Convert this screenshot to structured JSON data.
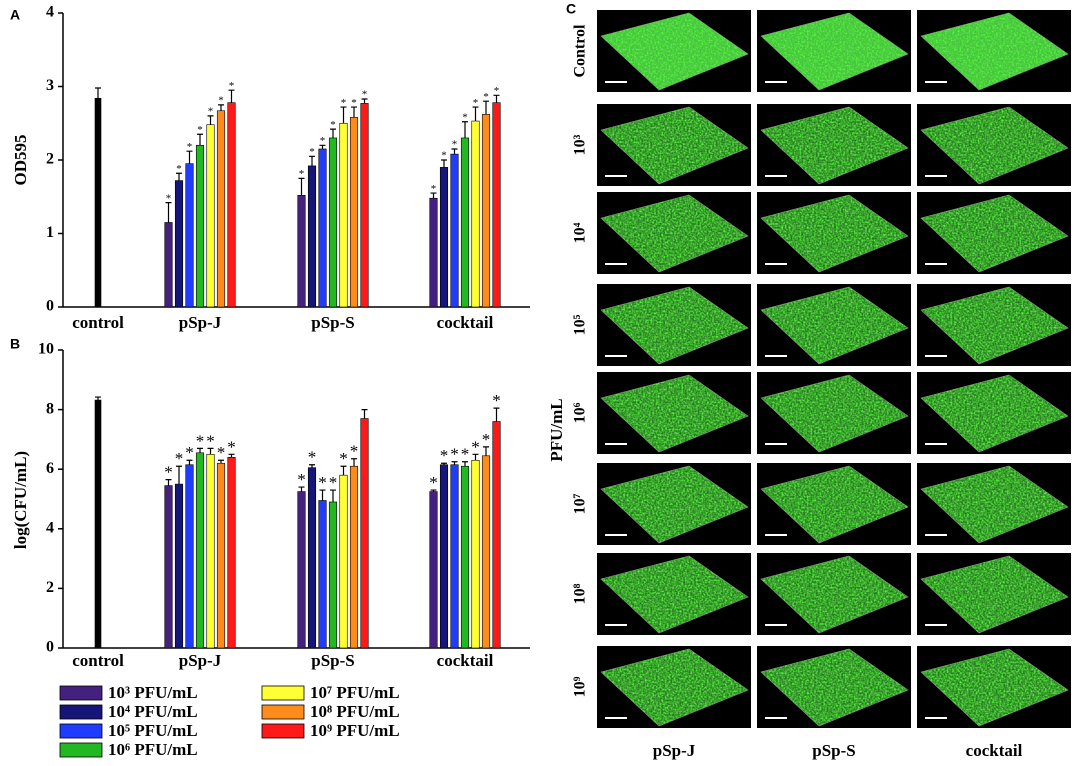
{
  "chart_data": [
    {
      "panel": "A",
      "type": "bar",
      "ylabel": "OD595",
      "categories": [
        "control",
        "pSp-J",
        "pSp-S",
        "cocktail"
      ],
      "ylim": [
        0,
        4
      ],
      "yticks": [
        0,
        1,
        2,
        3,
        4
      ],
      "control": {
        "value": 2.84,
        "error": 0.14,
        "color": "#000000"
      },
      "series": [
        {
          "color": "#45217f",
          "values": [
            null,
            1.15,
            1.52,
            1.48
          ],
          "errors": [
            null,
            0.27,
            0.23,
            0.07
          ],
          "sig": [
            null,
            "*",
            "*",
            "*"
          ]
        },
        {
          "color": "#16167a",
          "values": [
            null,
            1.72,
            1.92,
            1.9
          ],
          "errors": [
            null,
            0.1,
            0.13,
            0.1
          ],
          "sig": [
            null,
            "*",
            "*",
            "*"
          ]
        },
        {
          "color": "#1f3cff",
          "values": [
            null,
            1.95,
            2.15,
            2.08
          ],
          "errors": [
            null,
            0.17,
            0.05,
            0.07
          ],
          "sig": [
            null,
            "*",
            "*",
            "*"
          ]
        },
        {
          "color": "#22b822",
          "values": [
            null,
            2.2,
            2.3,
            2.3
          ],
          "errors": [
            null,
            0.15,
            0.12,
            0.22
          ],
          "sig": [
            null,
            "*",
            "*",
            "*"
          ]
        },
        {
          "color": "#ffff33",
          "values": [
            null,
            2.48,
            2.5,
            2.53
          ],
          "errors": [
            null,
            0.12,
            0.22,
            0.19
          ],
          "sig": [
            null,
            "*",
            "*",
            "*"
          ]
        },
        {
          "color": "#ff8c1a",
          "values": [
            null,
            2.67,
            2.58,
            2.62
          ],
          "errors": [
            null,
            0.08,
            0.14,
            0.18
          ],
          "sig": [
            null,
            "*",
            "*",
            "*"
          ]
        },
        {
          "color": "#ff1a1a",
          "values": [
            null,
            2.78,
            2.77,
            2.78
          ],
          "errors": [
            null,
            0.17,
            0.06,
            0.1
          ],
          "sig": [
            null,
            "*",
            "*",
            "*"
          ]
        }
      ]
    },
    {
      "panel": "B",
      "type": "bar",
      "ylabel": "log(CFU/mL)",
      "categories": [
        "control",
        "pSp-J",
        "pSp-S",
        "cocktail"
      ],
      "ylim": [
        0,
        10
      ],
      "yticks": [
        0,
        2,
        4,
        6,
        8,
        10
      ],
      "control": {
        "value": 8.32,
        "error": 0.1,
        "color": "#000000"
      },
      "series": [
        {
          "name": "10³ PFU/mL",
          "color": "#45217f",
          "values": [
            null,
            5.45,
            5.25,
            5.25
          ],
          "errors": [
            null,
            0.2,
            0.15,
            0.05
          ],
          "sig": [
            null,
            "*",
            "*",
            "*"
          ]
        },
        {
          "name": "10⁴ PFU/mL",
          "color": "#16167a",
          "values": [
            null,
            5.5,
            6.05,
            6.15
          ],
          "errors": [
            null,
            0.6,
            0.1,
            0.05
          ],
          "sig": [
            null,
            "*",
            "*",
            "*"
          ]
        },
        {
          "name": "10⁵ PFU/mL",
          "color": "#1f3cff",
          "values": [
            null,
            6.15,
            4.95,
            6.15
          ],
          "errors": [
            null,
            0.15,
            0.35,
            0.1
          ],
          "sig": [
            null,
            "*",
            "*",
            "*"
          ]
        },
        {
          "name": "10⁶ PFU/mL",
          "color": "#22b822",
          "values": [
            null,
            6.55,
            4.9,
            6.1
          ],
          "errors": [
            null,
            0.15,
            0.4,
            0.15
          ],
          "sig": [
            null,
            "*",
            "*",
            "*"
          ]
        },
        {
          "name": "10⁷ PFU/mL",
          "color": "#ffff33",
          "values": [
            null,
            6.5,
            5.8,
            6.3
          ],
          "errors": [
            null,
            0.2,
            0.3,
            0.2
          ],
          "sig": [
            null,
            "*",
            "*",
            "*"
          ]
        },
        {
          "name": "10⁸ PFU/mL",
          "color": "#ff8c1a",
          "values": [
            null,
            6.2,
            6.1,
            6.45
          ],
          "errors": [
            null,
            0.1,
            0.25,
            0.3
          ],
          "sig": [
            null,
            "*",
            "*",
            "*"
          ]
        },
        {
          "name": "10⁹ PFU/mL",
          "color": "#ff1a1a",
          "values": [
            null,
            6.4,
            7.7,
            7.6
          ],
          "errors": [
            null,
            0.1,
            0.3,
            0.45
          ],
          "sig": [
            null,
            "*",
            null,
            "*"
          ]
        }
      ]
    }
  ],
  "image_grid": {
    "panel": "C",
    "row_axis_label": "PFU/mL",
    "rows": [
      "Control",
      "10³",
      "10⁴",
      "10⁵",
      "10⁶",
      "10⁷",
      "10⁸",
      "10⁹"
    ],
    "columns": [
      "pSp-J",
      "pSp-S",
      "cocktail"
    ]
  }
}
